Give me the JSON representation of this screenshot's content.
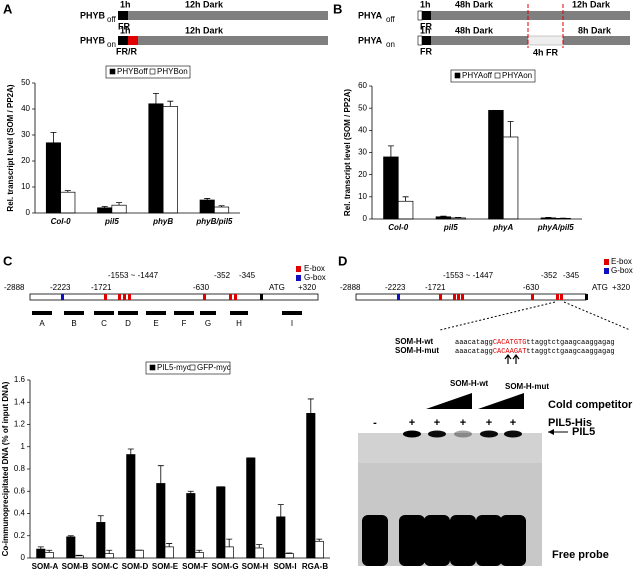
{
  "panels": [
    "A",
    "B",
    "C",
    "D"
  ],
  "schedule_a": {
    "off": {
      "gene": "PHYB",
      "state": "off",
      "first": "1h",
      "dark": "12h Dark",
      "light": "FR"
    },
    "on": {
      "gene": "PHYB",
      "state": "on",
      "first": "1h",
      "dark": "12h Dark",
      "light": "FR/R"
    }
  },
  "schedule_b": {
    "off": {
      "gene": "PHYA",
      "state": "off",
      "first": "1h",
      "dark1": "48h Dark",
      "dark2": "12h Dark",
      "light": "FR"
    },
    "on": {
      "gene": "PHYA",
      "state": "on",
      "first": "1h",
      "dark1": "48h Dark",
      "dark2": "8h Dark",
      "light": "FR",
      "light2": "4h FR"
    }
  },
  "promoter": {
    "positions": [
      "-2888",
      "-2223",
      "-1721",
      "-1553 ~ -1447",
      "-630",
      "-352",
      "-345",
      "ATG",
      "+320"
    ],
    "legend": [
      "E-box",
      "G-box"
    ],
    "fragments": [
      "A",
      "B",
      "C",
      "D",
      "E",
      "F",
      "G",
      "H",
      "I"
    ]
  },
  "probe": {
    "wt": {
      "name": "SOM-H-wt",
      "parts": [
        "aaacatagg",
        "CACATGTG",
        "ttaggtctgaagcaaggagag"
      ]
    },
    "mut": {
      "name": "SOM-H-mut",
      "parts": [
        "aaacatagg",
        "CACAAGAT",
        "ttaggtctgaagcaaggagag"
      ]
    }
  },
  "gel": {
    "competitor_wt": "SOM-H-wt",
    "competitor_mut": "SOM-H-mut",
    "row1": "Cold competitor",
    "row2": "PIL5-His",
    "lanes": [
      "-",
      "+",
      "+",
      "+",
      "+",
      "+"
    ],
    "band": "PIL5",
    "free": "Free probe"
  },
  "chart_data": [
    {
      "type": "bar",
      "y_label": "Rel. transcript level (SOM / PP2A)",
      "categories": [
        "Col-0",
        "pil5",
        "phyB",
        "phyB/pil5"
      ],
      "series": [
        {
          "name": "PHYBoff",
          "color": "#000000",
          "values": [
            27,
            2,
            42,
            5
          ],
          "errors": [
            4,
            0.5,
            4,
            0.6
          ]
        },
        {
          "name": "PHYBon",
          "color": "#ffffff",
          "values": [
            8,
            3,
            41,
            2.3
          ],
          "errors": [
            0.6,
            1,
            2,
            0.5
          ]
        }
      ],
      "ylim": [
        0,
        50
      ],
      "yticks": [
        0,
        10,
        20,
        30,
        40,
        50
      ]
    },
    {
      "type": "bar",
      "y_label": "Rel. transcript level (SOM / PP2A)",
      "categories": [
        "Col-0",
        "pil5",
        "phyA",
        "phyA/pil5"
      ],
      "series": [
        {
          "name": "PHYAoff",
          "color": "#000000",
          "values": [
            28,
            1,
            49,
            0.5
          ],
          "errors": [
            5,
            0.3,
            0,
            0.2
          ]
        },
        {
          "name": "PHYAon",
          "color": "#ffffff",
          "values": [
            8,
            0.5,
            37,
            0.3
          ],
          "errors": [
            2,
            0.2,
            7,
            0.1
          ]
        }
      ],
      "ylim": [
        0,
        60
      ],
      "yticks": [
        0,
        10,
        20,
        30,
        40,
        50,
        60
      ]
    },
    {
      "type": "bar",
      "y_label": "Co-immunoprecipitated DNA (% of input DNA)",
      "categories": [
        "SOM-A",
        "SOM-B",
        "SOM-C",
        "SOM-D",
        "SOM-E",
        "SOM-F",
        "SOM-G",
        "SOM-H",
        "SOM-I",
        "RGA-B"
      ],
      "series": [
        {
          "name": "PIL5-myc",
          "color": "#000000",
          "values": [
            0.08,
            0.19,
            0.32,
            0.93,
            0.67,
            0.58,
            0.64,
            0.9,
            0.37,
            1.3
          ],
          "errors": [
            0.02,
            0.01,
            0.06,
            0.05,
            0.16,
            0.02,
            0,
            0,
            0.11,
            0.13
          ]
        },
        {
          "name": "GFP-myc",
          "color": "#ffffff",
          "values": [
            0.05,
            0.02,
            0.04,
            0.07,
            0.1,
            0.05,
            0.1,
            0.09,
            0.04,
            0.15
          ],
          "errors": [
            0.02,
            0.005,
            0.03,
            0,
            0.03,
            0.02,
            0.07,
            0.03,
            0.005,
            0.02
          ]
        }
      ],
      "ylim": [
        0,
        1.6
      ],
      "yticks": [
        0,
        0.2,
        0.4,
        0.6,
        0.8,
        1,
        1.2,
        1.4,
        1.6
      ]
    }
  ]
}
